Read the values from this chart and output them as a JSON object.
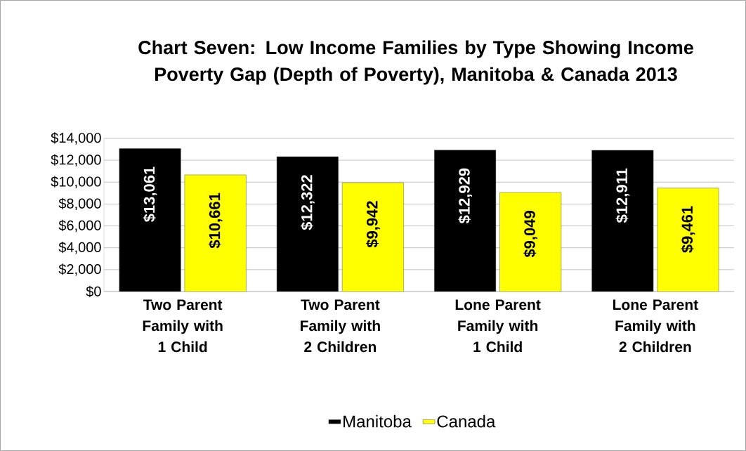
{
  "chart_data": {
    "type": "bar",
    "title": "Chart Seven: Low Income Families by Type Showing Income Poverty Gap (Depth of Poverty), Manitoba & Canada 2013",
    "categories": [
      "Two Parent Family with 1 Child",
      "Two Parent Family with 2 Children",
      "Lone Parent Family with 1 Child",
      "Lone Parent Family with 2 Children"
    ],
    "series": [
      {
        "name": "Manitoba",
        "color": "#000000",
        "values": [
          13061,
          12322,
          12929,
          12911
        ],
        "value_labels": [
          "$13,061",
          "$12,322",
          "$12,929",
          "$12,911"
        ]
      },
      {
        "name": "Canada",
        "color": "#ffff00",
        "values": [
          10661,
          9942,
          9049,
          9461
        ],
        "value_labels": [
          "$10,661",
          "$9,942",
          "$9,049",
          "$9,461"
        ]
      }
    ],
    "ylim": [
      0,
      14000
    ],
    "yticks": [
      {
        "value": 0,
        "label": "$0"
      },
      {
        "value": 2000,
        "label": "$2,000"
      },
      {
        "value": 4000,
        "label": "$4,000"
      },
      {
        "value": 6000,
        "label": "$6,000"
      },
      {
        "value": 8000,
        "label": "$8,000"
      },
      {
        "value": 10000,
        "label": "$10,000"
      },
      {
        "value": 12000,
        "label": "$12,000"
      },
      {
        "value": 14000,
        "label": "$14,000"
      }
    ],
    "grid": "y",
    "legend": "bottom"
  }
}
